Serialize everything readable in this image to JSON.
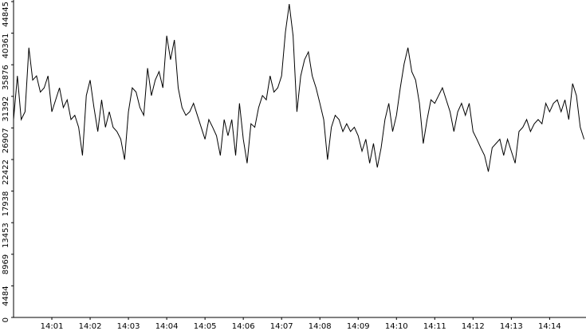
{
  "chart_data": {
    "type": "line",
    "x": [
      0,
      0.1,
      0.2,
      0.3,
      0.4,
      0.5,
      0.6,
      0.7,
      0.8,
      0.9,
      1,
      1.1,
      1.2,
      1.3,
      1.4,
      1.5,
      1.6,
      1.7,
      1.8,
      1.9,
      2,
      2.1,
      2.2,
      2.3,
      2.4,
      2.5,
      2.6,
      2.7,
      2.8,
      2.9,
      3,
      3.1,
      3.2,
      3.3,
      3.4,
      3.5,
      3.6,
      3.7,
      3.8,
      3.9,
      4,
      4.1,
      4.2,
      4.3,
      4.4,
      4.5,
      4.6,
      4.7,
      4.8,
      4.9,
      5,
      5.1,
      5.2,
      5.3,
      5.4,
      5.5,
      5.6,
      5.7,
      5.8,
      5.9,
      6,
      6.1,
      6.2,
      6.3,
      6.4,
      6.5,
      6.6,
      6.7,
      6.8,
      6.9,
      7,
      7.1,
      7.2,
      7.3,
      7.4,
      7.5,
      7.6,
      7.7,
      7.8,
      7.9,
      8,
      8.1,
      8.2,
      8.3,
      8.4,
      8.5,
      8.6,
      8.7,
      8.8,
      8.9,
      9,
      9.1,
      9.2,
      9.3,
      9.4,
      9.5,
      9.6,
      9.7,
      9.8,
      9.9,
      10,
      10.1,
      10.2,
      10.3,
      10.4,
      10.5,
      10.6,
      10.7,
      10.8,
      10.9,
      11,
      11.1,
      11.2,
      11.3,
      11.4,
      11.5,
      11.6,
      11.7,
      11.8,
      11.9,
      12,
      12.1,
      12.2,
      12.3,
      12.4,
      12.5,
      12.6,
      12.7,
      12.8,
      12.9,
      13,
      13.1,
      13.2,
      13.3,
      13.4,
      13.5,
      13.6,
      13.7,
      13.8,
      13.9,
      14,
      14.1,
      14.2,
      14.3,
      14.4,
      14.5,
      14.6,
      14.7,
      14.8,
      14.9
    ],
    "series": [
      {
        "color": "#000000",
        "values": [
          28100,
          34300,
          28100,
          29200,
          38300,
          33700,
          34300,
          32000,
          32600,
          34300,
          29200,
          30900,
          32600,
          29800,
          30900,
          28100,
          28700,
          27000,
          23000,
          31500,
          33700,
          29800,
          26400,
          30900,
          27000,
          29200,
          27000,
          26400,
          25300,
          22400,
          29200,
          32600,
          32000,
          29800,
          28700,
          35400,
          31500,
          33700,
          34900,
          32600,
          40000,
          36600,
          39400,
          32600,
          29800,
          28700,
          29200,
          30400,
          28700,
          27000,
          25300,
          28100,
          27000,
          25800,
          23000,
          28100,
          25800,
          28100,
          23000,
          30400,
          25300,
          21900,
          27500,
          27000,
          29800,
          31500,
          30900,
          34300,
          32000,
          32600,
          34300,
          40500,
          44500,
          40000,
          29200,
          34300,
          36600,
          37700,
          34300,
          32600,
          30400,
          28100,
          22400,
          27000,
          28700,
          28100,
          26400,
          27500,
          26400,
          27000,
          25800,
          23600,
          25300,
          21900,
          24700,
          21300,
          24100,
          28100,
          30400,
          26400,
          28700,
          32600,
          36000,
          38300,
          34900,
          33700,
          30400,
          24700,
          28100,
          30900,
          30400,
          31500,
          32600,
          30900,
          29200,
          26400,
          29200,
          30400,
          28700,
          30400,
          26400,
          25300,
          24100,
          23000,
          20700,
          24100,
          24700,
          25300,
          23000,
          25300,
          23600,
          21900,
          26400,
          27000,
          28100,
          26400,
          27500,
          28100,
          27500,
          30400,
          29200,
          30400,
          30900,
          29200,
          30900,
          28100,
          33200,
          31500,
          27000,
          25300
        ]
      }
    ],
    "xlim": [
      0,
      14.95
    ],
    "xticks": [
      {
        "value": 1,
        "label": "14:01"
      },
      {
        "value": 2,
        "label": "14:02"
      },
      {
        "value": 3,
        "label": "14:03"
      },
      {
        "value": 4,
        "label": "14:04"
      },
      {
        "value": 5,
        "label": "14:05"
      },
      {
        "value": 6,
        "label": "14:06"
      },
      {
        "value": 7,
        "label": "14:07"
      },
      {
        "value": 8,
        "label": "14:08"
      },
      {
        "value": 9,
        "label": "14:09"
      },
      {
        "value": 10,
        "label": "14:10"
      },
      {
        "value": 11,
        "label": "14:11"
      },
      {
        "value": 12,
        "label": "14:12"
      },
      {
        "value": 13,
        "label": "14:13"
      },
      {
        "value": 14,
        "label": "14:14"
      }
    ],
    "ylim": [
      0,
      44845
    ],
    "yticks": [
      0,
      4484,
      8969,
      13453,
      17938,
      22422,
      26907,
      31392,
      35876,
      40361,
      44845
    ]
  }
}
